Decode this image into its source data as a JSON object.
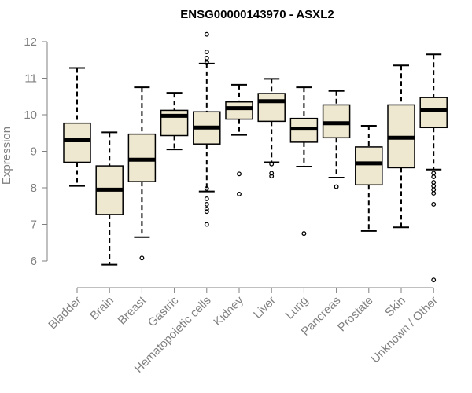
{
  "chart_data": {
    "type": "boxplot",
    "title": "ENSG00000143970 - ASXL2",
    "xlabel": "",
    "ylabel": "Expression",
    "ylim": [
      5.4,
      12.2
    ],
    "yticks": [
      6,
      7,
      8,
      9,
      10,
      11,
      12
    ],
    "box_color": "#efe8d0",
    "categories": [
      "Bladder",
      "Brain",
      "Breast",
      "Gastric",
      "Hematopoietic cells",
      "Kidney",
      "Liver",
      "Lung",
      "Pancreas",
      "Prostate",
      "Skin",
      "Unknown / Other"
    ],
    "series": [
      {
        "name": "Bladder",
        "whisker_low": 8.05,
        "q1": 8.7,
        "median": 9.3,
        "q3": 9.77,
        "whisker_high": 11.28,
        "outliers": []
      },
      {
        "name": "Brain",
        "whisker_low": 5.9,
        "q1": 7.27,
        "median": 7.95,
        "q3": 8.6,
        "whisker_high": 9.52,
        "outliers": []
      },
      {
        "name": "Breast",
        "whisker_low": 6.65,
        "q1": 8.17,
        "median": 8.77,
        "q3": 9.47,
        "whisker_high": 10.75,
        "outliers": [
          6.08
        ]
      },
      {
        "name": "Gastric",
        "whisker_low": 9.05,
        "q1": 9.43,
        "median": 9.97,
        "q3": 10.12,
        "whisker_high": 10.6,
        "outliers": []
      },
      {
        "name": "Hematopoietic cells",
        "whisker_low": 7.9,
        "q1": 9.2,
        "median": 9.65,
        "q3": 10.08,
        "whisker_high": 11.4,
        "outliers": [
          12.2,
          11.72,
          11.55,
          11.45,
          11.42,
          7.98,
          7.7,
          7.55,
          7.42,
          7.35,
          7.0
        ]
      },
      {
        "name": "Kidney",
        "whisker_low": 9.45,
        "q1": 9.88,
        "median": 10.18,
        "q3": 10.35,
        "whisker_high": 10.82,
        "outliers": [
          8.38,
          7.83
        ]
      },
      {
        "name": "Liver",
        "whisker_low": 8.7,
        "q1": 9.82,
        "median": 10.37,
        "q3": 10.58,
        "whisker_high": 10.98,
        "outliers": [
          8.65,
          8.4,
          8.32
        ]
      },
      {
        "name": "Lung",
        "whisker_low": 8.58,
        "q1": 9.25,
        "median": 9.62,
        "q3": 9.9,
        "whisker_high": 10.75,
        "outliers": [
          6.75
        ]
      },
      {
        "name": "Pancreas",
        "whisker_low": 8.28,
        "q1": 9.37,
        "median": 9.77,
        "q3": 10.27,
        "whisker_high": 10.65,
        "outliers": [
          8.03
        ]
      },
      {
        "name": "Prostate",
        "whisker_low": 6.82,
        "q1": 8.08,
        "median": 8.67,
        "q3": 9.12,
        "whisker_high": 9.7,
        "outliers": []
      },
      {
        "name": "Skin",
        "whisker_low": 6.92,
        "q1": 8.55,
        "median": 9.37,
        "q3": 10.27,
        "whisker_high": 11.35,
        "outliers": []
      },
      {
        "name": "Unknown / Other",
        "whisker_low": 8.5,
        "q1": 9.65,
        "median": 10.13,
        "q3": 10.47,
        "whisker_high": 11.65,
        "outliers": [
          8.4,
          8.3,
          8.15,
          8.05,
          7.95,
          7.85,
          7.55,
          5.48
        ]
      }
    ]
  }
}
